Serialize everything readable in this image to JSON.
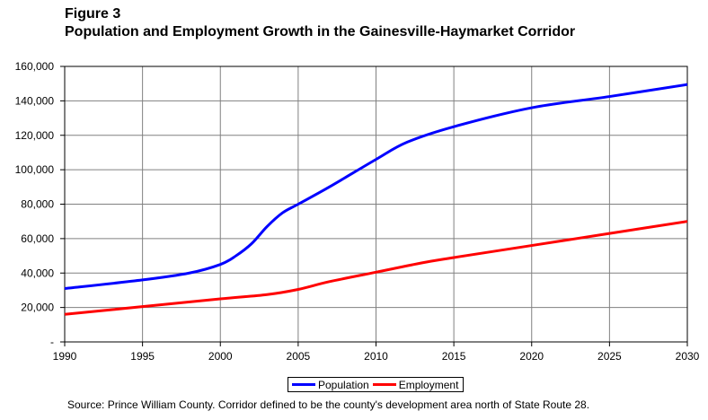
{
  "figure": {
    "label": "Figure 3",
    "title": "Population and Employment Growth in the Gainesville-Haymarket Corridor",
    "source": "Source:  Prince William County.  Corridor defined to be the county's development area north of State Route 28."
  },
  "chart_data": {
    "type": "line",
    "xlim": [
      1990,
      2030
    ],
    "ylim": [
      0,
      160000
    ],
    "x_ticks": [
      "1990",
      "1995",
      "2000",
      "2005",
      "2010",
      "2015",
      "2020",
      "2025",
      "2030"
    ],
    "x_tick_values": [
      1990,
      1995,
      2000,
      2005,
      2010,
      2015,
      2020,
      2025,
      2030
    ],
    "y_ticks": [
      "-",
      "20,000",
      "40,000",
      "60,000",
      "80,000",
      "100,000",
      "120,000",
      "140,000",
      "160,000"
    ],
    "y_tick_values": [
      0,
      20000,
      40000,
      60000,
      80000,
      100000,
      120000,
      140000,
      160000
    ],
    "grid": true,
    "legend_position": "bottom-center",
    "series": [
      {
        "name": "Population",
        "color": "#0000ff",
        "x": [
          1990,
          1995,
          1998,
          2000,
          2001,
          2002,
          2003,
          2004,
          2005,
          2007,
          2010,
          2012,
          2015,
          2020,
          2025,
          2030
        ],
        "values": [
          31000,
          36000,
          40000,
          45000,
          50000,
          57000,
          67000,
          75000,
          80000,
          90000,
          106000,
          116000,
          125000,
          136000,
          142500,
          149500
        ]
      },
      {
        "name": "Employment",
        "color": "#ff0000",
        "x": [
          1990,
          1995,
          2000,
          2003,
          2005,
          2007,
          2010,
          2013,
          2015,
          2020,
          2025,
          2030
        ],
        "values": [
          16000,
          20500,
          25000,
          27500,
          30500,
          35000,
          40500,
          46000,
          49000,
          56000,
          63000,
          70000
        ]
      }
    ]
  }
}
